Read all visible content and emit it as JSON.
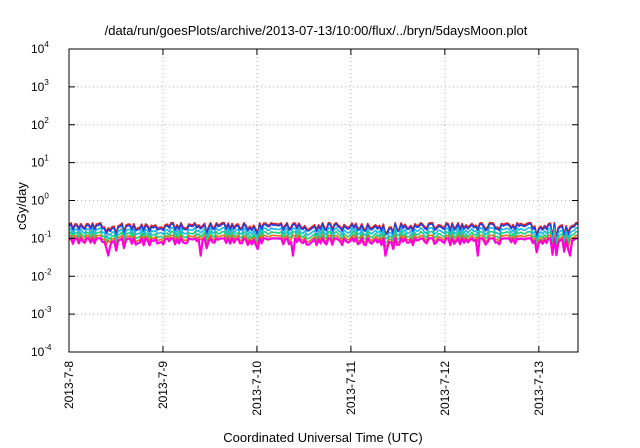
{
  "chart_data": {
    "type": "line",
    "title": "/data/run/goesPlots/archive/2013-07-13/10:00/flux/../bryn/5daysMoon.plot",
    "xlabel": "Coordinated Universal Time (UTC)",
    "ylabel": "cGy/day",
    "yscale": "log",
    "ylim": [
      0.0001,
      10000
    ],
    "y_ticks": [
      {
        "base": "10",
        "exp": "4",
        "value": 10000
      },
      {
        "base": "10",
        "exp": "3",
        "value": 1000
      },
      {
        "base": "10",
        "exp": "2",
        "value": 100
      },
      {
        "base": "10",
        "exp": "1",
        "value": 10
      },
      {
        "base": "10",
        "exp": "0",
        "value": 1
      },
      {
        "base": "10",
        "exp": "-1",
        "value": 0.1
      },
      {
        "base": "10",
        "exp": "-2",
        "value": 0.01
      },
      {
        "base": "10",
        "exp": "-3",
        "value": 0.001
      },
      {
        "base": "10",
        "exp": "-4",
        "value": 0.0001
      }
    ],
    "x_start": "2013-07-08",
    "x_end": "2013-07-13 10:00",
    "x_ticks": [
      {
        "label": "2013-7-8",
        "date": "2013-07-08"
      },
      {
        "label": "2013-7-9",
        "date": "2013-07-09"
      },
      {
        "label": "2013-7-10",
        "date": "2013-07-10"
      },
      {
        "label": "2013-7-11",
        "date": "2013-07-11"
      },
      {
        "label": "2013-7-12",
        "date": "2013-07-12"
      },
      {
        "label": "2013-7-13",
        "date": "2013-07-13"
      }
    ],
    "grid": true,
    "series": [
      {
        "color": "#e8201c",
        "typical_value": 0.21,
        "spike_value": 0.26
      },
      {
        "color": "#1f3fe0",
        "typical_value": 0.19,
        "spike_value": 0.24
      },
      {
        "color": "#20b8e0",
        "typical_value": 0.15,
        "spike_value": 0.19
      },
      {
        "color": "#20d080",
        "typical_value": 0.12,
        "spike_value": 0.15
      },
      {
        "color": "#e07020",
        "typical_value": 0.1,
        "spike_value": 0.12
      },
      {
        "color": "#ff00dd",
        "typical_value": 0.085,
        "spike_value": 0.1,
        "dip_value": 0.035
      }
    ]
  }
}
